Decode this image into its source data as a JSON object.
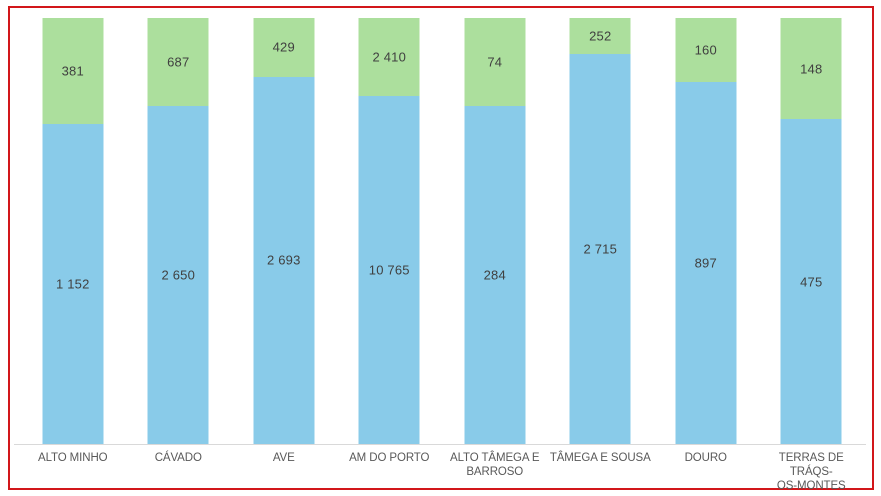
{
  "chart": {
    "background": "#ffffff",
    "annotation_border_color": "#d2161a",
    "baseline_color": "#d9d9d9",
    "value_label_color": "#404040",
    "category_label_color": "#595959"
  },
  "chart_data": {
    "type": "bar",
    "subtype": "percent-stacked-column",
    "orientation": "vertical",
    "title": "",
    "xlabel": "",
    "ylabel": "",
    "legend": "none",
    "gridlines": false,
    "axis_line": "bottom-only",
    "categories": [
      "ALTO MINHO",
      "CÁVADO",
      "AVE",
      "AM DO PORTO",
      "ALTO TÂMEGA E BARROSO",
      "TÂMEGA E SOUSA",
      "DOURO",
      "TERRAS DE TRÁQS-OS-MONTES"
    ],
    "categories_display": [
      "ALTO MINHO",
      "CÁVADO",
      "AVE",
      "AM DO PORTO",
      "ALTO TÂMEGA E\nBARROSO",
      "TÂMEGA E SOUSA",
      "DOURO",
      "TERRAS DE TRÁQS-\nOS-MONTES"
    ],
    "series": [
      {
        "name": "bottom-segment",
        "color": "#89cbe9",
        "values": [
          1152,
          2650,
          2693,
          10765,
          284,
          2715,
          897,
          475
        ],
        "labels": [
          "1 152",
          "2 650",
          "2 693",
          "10 765",
          "284",
          "2 715",
          "897",
          "475"
        ]
      },
      {
        "name": "top-segment",
        "color": "#acdf9d",
        "values": [
          381,
          687,
          429,
          2410,
          74,
          252,
          160,
          148
        ],
        "labels": [
          "381",
          "687",
          "429",
          "2 410",
          "74",
          "252",
          "160",
          "148"
        ]
      }
    ],
    "stack_order_top_to_bottom": [
      "top-segment",
      "bottom-segment"
    ],
    "ylim_percent": [
      0,
      100
    ]
  }
}
